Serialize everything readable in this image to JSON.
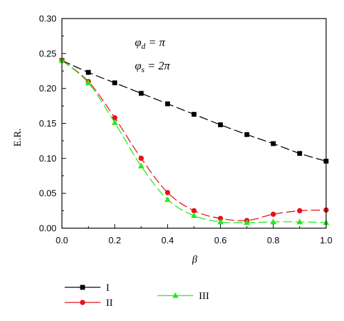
{
  "chart_data": {
    "type": "line",
    "xlabel": "β",
    "ylabel": "E.R.",
    "xlim": [
      0.0,
      1.0
    ],
    "ylim": [
      0.0,
      0.3
    ],
    "xticks": [
      "0.0",
      "0.2",
      "0.4",
      "0.6",
      "0.8",
      "1.0"
    ],
    "yticks": [
      "0.00",
      "0.05",
      "0.10",
      "0.15",
      "0.20",
      "0.25",
      "0.30"
    ],
    "grid": false,
    "legend": "bottom",
    "annotations": {
      "phi_d": {
        "symbol": "φ",
        "sub": "d",
        "rhs": " = π"
      },
      "phi_s": {
        "symbol": "φ",
        "sub": "s",
        "rhs": " = 2π"
      }
    },
    "x": [
      0.0,
      0.1,
      0.2,
      0.3,
      0.4,
      0.5,
      0.6,
      0.7,
      0.8,
      0.9,
      1.0
    ],
    "series": [
      {
        "name": "I",
        "color": "#000000",
        "marker": "square",
        "values": [
          0.24,
          0.223,
          0.208,
          0.193,
          0.178,
          0.163,
          0.148,
          0.134,
          0.121,
          0.107,
          0.096
        ]
      },
      {
        "name": "II",
        "color": "#e8101a",
        "marker": "circle",
        "values": [
          0.24,
          0.21,
          0.158,
          0.1,
          0.051,
          0.025,
          0.014,
          0.011,
          0.02,
          0.025,
          0.026
        ]
      },
      {
        "name": "III",
        "color": "#27e81c",
        "marker": "triangle",
        "values": [
          0.24,
          0.208,
          0.151,
          0.089,
          0.041,
          0.018,
          0.009,
          0.008,
          0.009,
          0.009,
          0.008
        ]
      }
    ]
  }
}
